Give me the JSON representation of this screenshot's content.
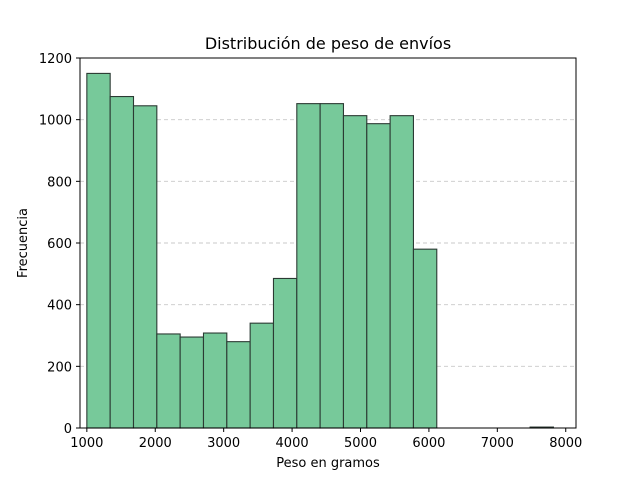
{
  "chart_data": {
    "type": "bar",
    "title": "Distribución de peso de envíos",
    "xlabel": "Peso en gramos",
    "ylabel": "Frecuencia",
    "xlim": [
      900,
      8150
    ],
    "ylim": [
      0,
      1200
    ],
    "xticks": [
      1000,
      2000,
      3000,
      4000,
      5000,
      6000,
      7000,
      8000
    ],
    "yticks": [
      0,
      200,
      400,
      600,
      800,
      1000,
      1200
    ],
    "grid": "horizontal dashed",
    "bin_width": 341,
    "bins": [
      {
        "x0": 1000,
        "x1": 1341,
        "count": 1150
      },
      {
        "x0": 1341,
        "x1": 1682,
        "count": 1075
      },
      {
        "x0": 1682,
        "x1": 2023,
        "count": 1045
      },
      {
        "x0": 2023,
        "x1": 2364,
        "count": 305
      },
      {
        "x0": 2364,
        "x1": 2705,
        "count": 295
      },
      {
        "x0": 2705,
        "x1": 3046,
        "count": 308
      },
      {
        "x0": 3046,
        "x1": 3387,
        "count": 280
      },
      {
        "x0": 3387,
        "x1": 3728,
        "count": 340
      },
      {
        "x0": 3728,
        "x1": 4069,
        "count": 485
      },
      {
        "x0": 4069,
        "x1": 4410,
        "count": 1052
      },
      {
        "x0": 4410,
        "x1": 4751,
        "count": 1052
      },
      {
        "x0": 4751,
        "x1": 5092,
        "count": 1013
      },
      {
        "x0": 5092,
        "x1": 5433,
        "count": 987
      },
      {
        "x0": 5433,
        "x1": 5774,
        "count": 1013
      },
      {
        "x0": 5774,
        "x1": 6115,
        "count": 580
      },
      {
        "x0": 6115,
        "x1": 6456,
        "count": 0
      },
      {
        "x0": 6456,
        "x1": 6797,
        "count": 0
      },
      {
        "x0": 6797,
        "x1": 7138,
        "count": 0
      },
      {
        "x0": 7138,
        "x1": 7479,
        "count": 0
      },
      {
        "x0": 7479,
        "x1": 7820,
        "count": 3
      }
    ],
    "colors": {
      "bar_fill": "#77c99a",
      "bar_edge": "#2b3a33",
      "grid": "#c8c8c8"
    }
  }
}
